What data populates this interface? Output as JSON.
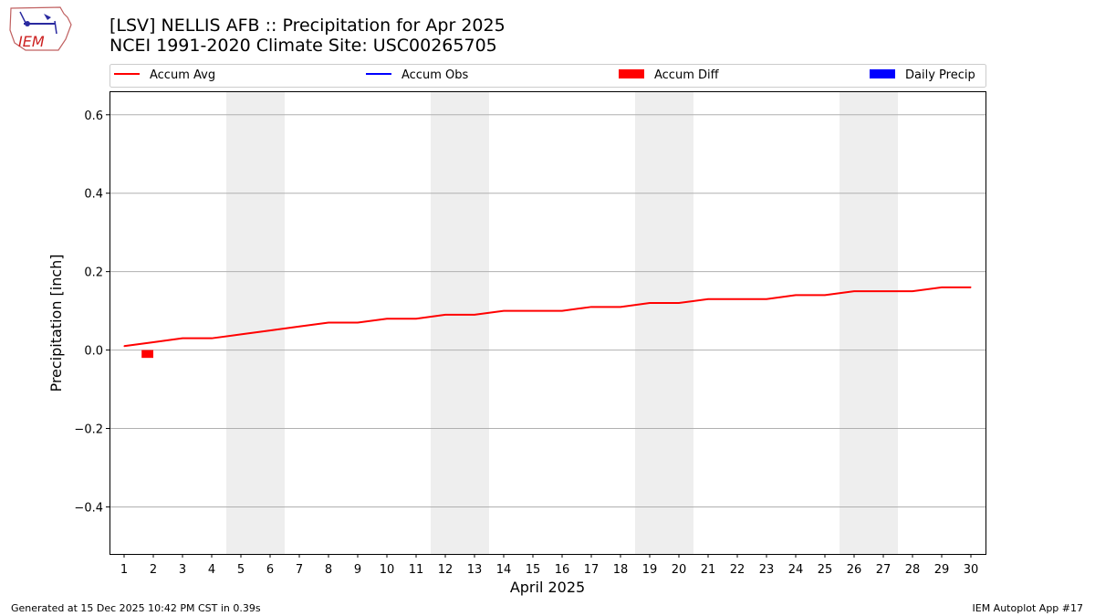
{
  "header": {
    "title": "[LSV] NELLIS AFB :: Precipitation for Apr 2025",
    "subtitle": "NCEI 1991-2020 Climate Site: USC00265705",
    "logo_text": "IEM"
  },
  "footer": {
    "generated": "Generated at 15 Dec 2025 10:42 PM CST in 0.39s",
    "app": "IEM Autoplot App #17"
  },
  "colors": {
    "accum_avg": "#ff0000",
    "accum_obs": "#0000ff",
    "accum_diff": "#ff0000",
    "daily_precip": "#0000ff",
    "weekend_shade": "#eeeeee",
    "grid": "#b0b0b0"
  },
  "chart_data": {
    "type": "line",
    "xlabel": "April 2025",
    "ylabel": "Precipitation [inch]",
    "xlim": [
      0.5,
      30.5
    ],
    "ylim": [
      -0.52,
      0.66
    ],
    "x": [
      1,
      2,
      3,
      4,
      5,
      6,
      7,
      8,
      9,
      10,
      11,
      12,
      13,
      14,
      15,
      16,
      17,
      18,
      19,
      20,
      21,
      22,
      23,
      24,
      25,
      26,
      27,
      28,
      29,
      30
    ],
    "x_tick_labels": [
      "1",
      "2",
      "3",
      "4",
      "5",
      "6",
      "7",
      "8",
      "9",
      "10",
      "11",
      "12",
      "13",
      "14",
      "15",
      "16",
      "17",
      "18",
      "19",
      "20",
      "21",
      "22",
      "23",
      "24",
      "25",
      "26",
      "27",
      "28",
      "29",
      "30"
    ],
    "y_ticks": [
      -0.4,
      -0.2,
      0.0,
      0.2,
      0.4,
      0.6
    ],
    "y_tick_labels": [
      "−0.4",
      "−0.2",
      "0.0",
      "0.2",
      "0.4",
      "0.6"
    ],
    "grid": "horizontal",
    "legend": {
      "placement": "top",
      "entries": [
        {
          "label": "Accum Avg",
          "kind": "line",
          "color": "#ff0000"
        },
        {
          "label": "Accum Obs",
          "kind": "line",
          "color": "#0000ff"
        },
        {
          "label": "Accum Diff",
          "kind": "bar",
          "color": "#ff0000"
        },
        {
          "label": "Daily Precip",
          "kind": "bar",
          "color": "#0000ff"
        }
      ]
    },
    "weekend_spans": [
      [
        4.5,
        6.5
      ],
      [
        11.5,
        13.5
      ],
      [
        18.5,
        20.5
      ],
      [
        25.5,
        27.5
      ]
    ],
    "series": [
      {
        "name": "Accum Avg",
        "type": "line",
        "color": "#ff0000",
        "values": [
          0.01,
          0.02,
          0.03,
          0.03,
          0.04,
          0.05,
          0.06,
          0.07,
          0.07,
          0.08,
          0.08,
          0.09,
          0.09,
          0.1,
          0.1,
          0.1,
          0.11,
          0.11,
          0.12,
          0.12,
          0.13,
          0.13,
          0.13,
          0.14,
          0.14,
          0.15,
          0.15,
          0.15,
          0.16,
          0.16
        ]
      },
      {
        "name": "Accum Diff",
        "type": "bar",
        "color": "#ff0000",
        "points": [
          {
            "x": 1.8,
            "value": -0.02
          }
        ]
      }
    ]
  }
}
